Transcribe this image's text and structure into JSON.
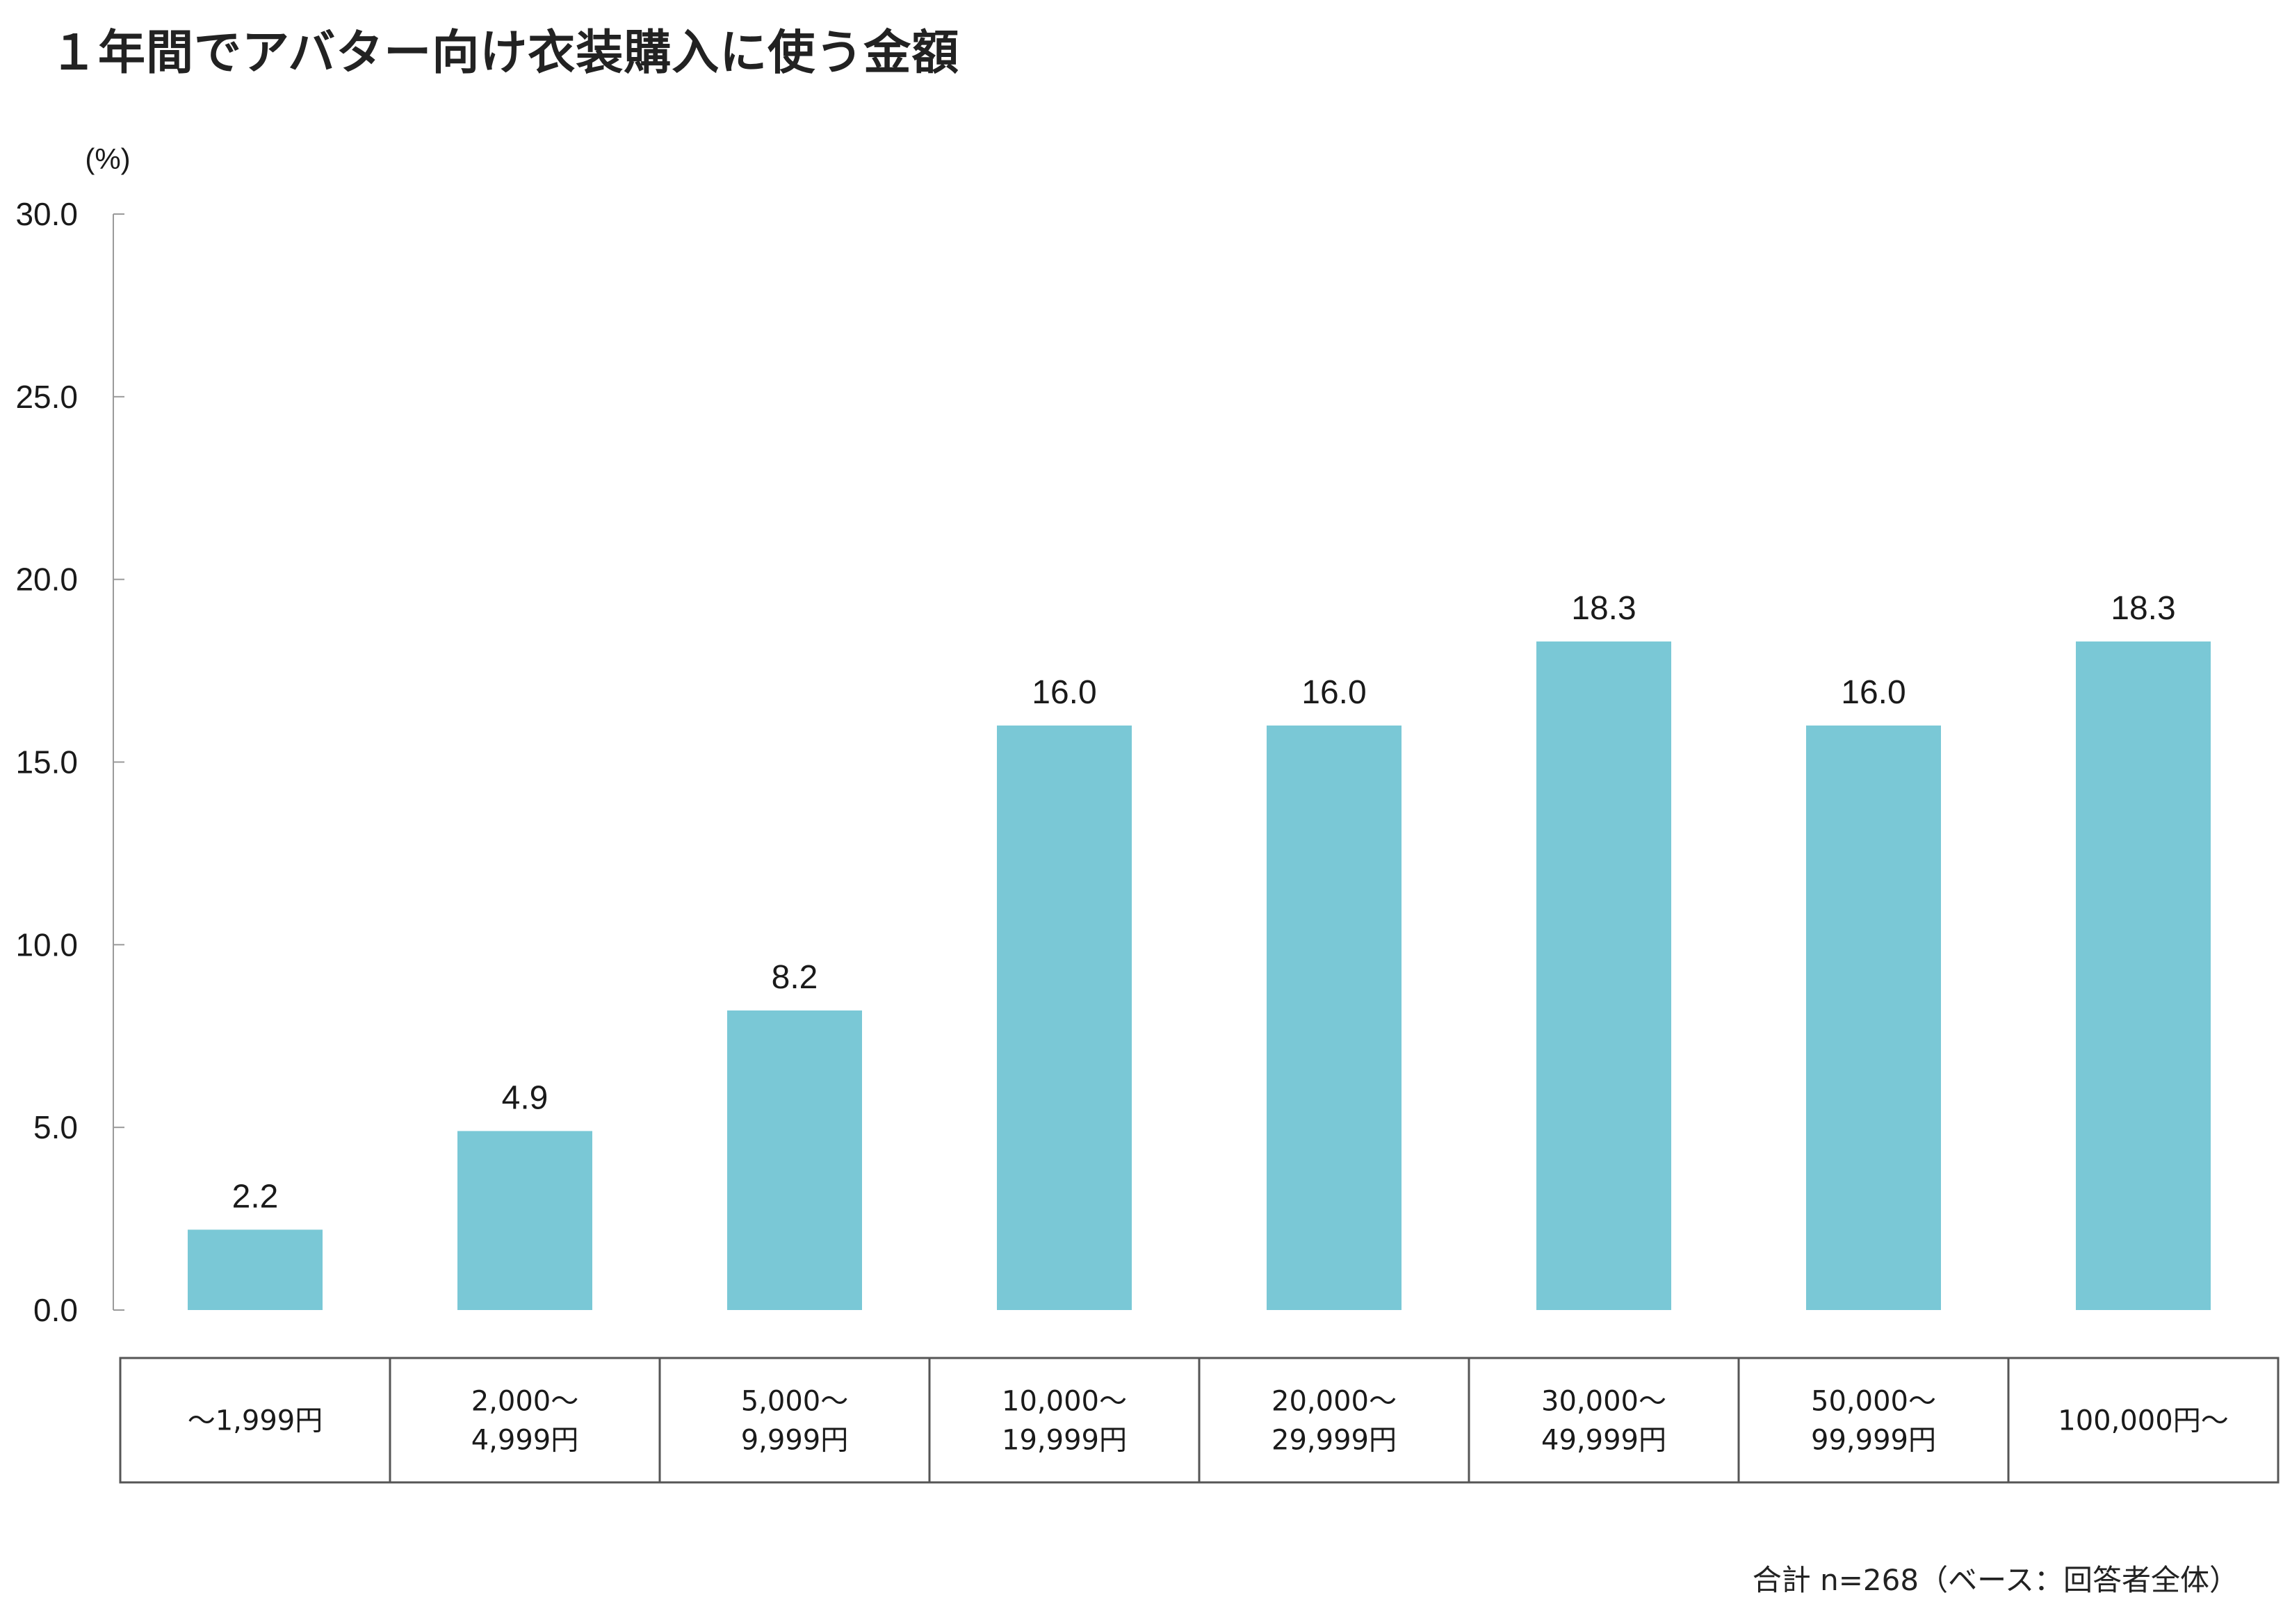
{
  "chart_data": {
    "type": "bar",
    "title": "１年間でアバター向け衣装購入に使う金額",
    "ylabel": "(%)",
    "ylim": [
      0,
      30
    ],
    "yticks": [
      "0.0",
      "5.0",
      "10.0",
      "15.0",
      "20.0",
      "25.0",
      "30.0"
    ],
    "grid": false,
    "categories": [
      "～1,999円",
      "2,000～ 4,999円",
      "5,000～ 9,999円",
      "10,000～ 19,999円",
      "20,000～ 29,999円",
      "30,000～ 49,999円",
      "50,000～ 99,999円",
      "100,000円～"
    ],
    "category_lines": [
      [
        "～1,999円"
      ],
      [
        "2,000～",
        "4,999円"
      ],
      [
        "5,000～",
        "9,999円"
      ],
      [
        "10,000～",
        "19,999円"
      ],
      [
        "20,000～",
        "29,999円"
      ],
      [
        "30,000～",
        "49,999円"
      ],
      [
        "50,000～",
        "99,999円"
      ],
      [
        "100,000円～"
      ]
    ],
    "values": [
      2.2,
      4.9,
      8.2,
      16.0,
      16.0,
      18.3,
      16.0,
      18.3
    ],
    "value_labels": [
      "2.2",
      "4.9",
      "8.2",
      "16.0",
      "16.0",
      "18.3",
      "16.0",
      "18.3"
    ],
    "bar_color": "#7AC8D6",
    "footnote": "合計 n=268（ベース：回答者全体）"
  }
}
